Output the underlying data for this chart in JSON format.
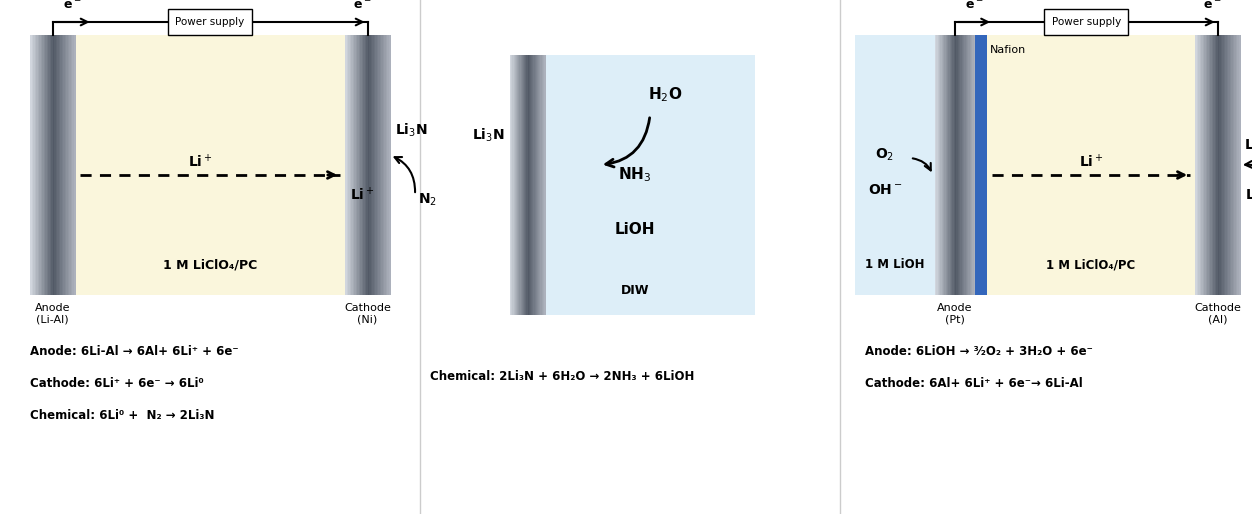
{
  "bg_color": "#ffffff",
  "electrolyte_yellow": "#faf6dc",
  "electrolyte_blue": "#ddeef8",
  "nafion_color": "#3366bb",
  "panel1": {
    "anode_label": "Anode\n(Li-Al)",
    "cathode_label": "Cathode\n(Ni)",
    "electrolyte_label": "1 M LiClO₄/PC",
    "power_supply_label": "Power supply",
    "eq1": "Anode: 6Li-Al → 6Al+ 6Li⁺ + 6e⁻",
    "eq2": "Cathode: 6Li⁺ + 6e⁻ → 6Li⁰",
    "eq3": "Chemical: 6Li⁰ +  N₂ → 2Li₃N"
  },
  "panel2": {
    "li3n_label": "Li₃N",
    "h2o_label": "H₂O",
    "nh3_label": "NH₃",
    "lioh_label": "LiOH",
    "diw_label": "DIW",
    "eq1": "Chemical: 2Li₃N + 6H₂O → 2NH₃ + 6LiOH"
  },
  "panel3": {
    "nafion_label": "Nafion",
    "o2_label": "O₂",
    "oh_label": "OH⁻",
    "lial_label": "Li-Al",
    "anode_label": "Anode\n(Pt)",
    "cathode_label": "Cathode\n(Al)",
    "lioh_electrolyte": "1 M LiOH",
    "electrolyte_label": "1 M LiClO₄/PC",
    "power_supply_label": "Power supply",
    "eq1": "Anode: 6LiOH → ³⁄₂O₂ + 3H₂O + 6e⁻",
    "eq2": "Cathode: 6Al+ 6Li⁺ + 6e⁻→ 6Li-Al"
  }
}
